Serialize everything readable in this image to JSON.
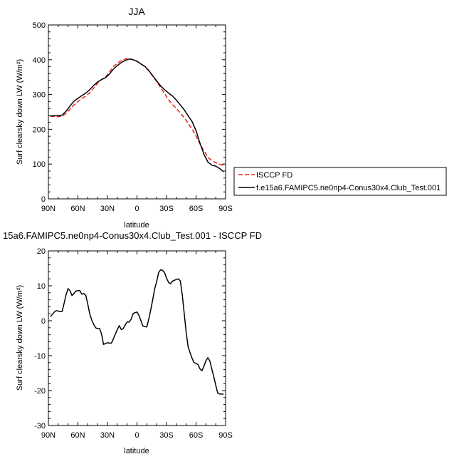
{
  "chart_data": [
    {
      "type": "line",
      "title": "JJA",
      "xlabel": "latitude",
      "ylabel": "Surf clearsky down LW (W/m²)",
      "xlim": [
        90,
        -90
      ],
      "ylim": [
        0,
        500
      ],
      "x_ticks": [
        "90N",
        "60N",
        "30N",
        "0",
        "30S",
        "60S",
        "90S"
      ],
      "y_ticks": [
        "0",
        "100",
        "200",
        "300",
        "400",
        "500"
      ],
      "grid": false,
      "legend_position": "right",
      "series": [
        {
          "name": "ISCCP FD",
          "color": "#e8201a",
          "dash": "dashed",
          "x": [
            88,
            84,
            80,
            76,
            72,
            68,
            64,
            60,
            56,
            52,
            48,
            44,
            40,
            36,
            32,
            28,
            24,
            20,
            16,
            12,
            8,
            4,
            0,
            -4,
            -8,
            -12,
            -16,
            -20,
            -24,
            -28,
            -32,
            -36,
            -40,
            -44,
            -48,
            -52,
            -56,
            -60,
            -64,
            -68,
            -72,
            -76,
            -80,
            -84,
            -88
          ],
          "values": [
            237,
            237,
            236,
            238,
            246,
            258,
            270,
            280,
            288,
            296,
            305,
            318,
            333,
            343,
            350,
            365,
            380,
            390,
            398,
            402,
            403,
            400,
            395,
            388,
            380,
            368,
            353,
            337,
            320,
            303,
            285,
            272,
            260,
            247,
            233,
            217,
            200,
            180,
            158,
            138,
            120,
            110,
            104,
            99,
            97
          ]
        },
        {
          "name": "f.e15a6.FAMIPC5.ne0np4-Conus30x4.Club_Test.001",
          "color": "#000000",
          "dash": "solid",
          "x": [
            88,
            84,
            80,
            76,
            72,
            68,
            64,
            60,
            56,
            52,
            48,
            44,
            40,
            36,
            32,
            28,
            24,
            20,
            16,
            12,
            8,
            4,
            0,
            -4,
            -8,
            -12,
            -16,
            -20,
            -24,
            -28,
            -32,
            -36,
            -40,
            -44,
            -48,
            -52,
            -56,
            -60,
            -64,
            -68,
            -72,
            -76,
            -80,
            -84,
            -88
          ],
          "values": [
            238,
            239,
            239,
            241,
            252,
            267,
            281,
            289,
            297,
            304,
            314,
            326,
            336,
            343,
            348,
            359,
            373,
            383,
            392,
            398,
            402,
            400,
            396,
            388,
            381,
            369,
            354,
            339,
            325,
            314,
            304,
            296,
            284,
            270,
            256,
            239,
            222,
            196,
            160,
            128,
            106,
            97,
            94,
            87,
            78
          ]
        }
      ]
    },
    {
      "type": "line",
      "title": "15a6.FAMIPC5.ne0np4-Conus30x4.Club_Test.001 - ISCCP FD",
      "xlabel": "latitude",
      "ylabel": "Surf clearsky down LW (W/m²)",
      "xlim": [
        90,
        -90
      ],
      "ylim": [
        -30,
        20
      ],
      "x_ticks": [
        "90N",
        "60N",
        "30N",
        "0",
        "30S",
        "60S",
        "90S"
      ],
      "y_ticks": [
        "-30",
        "-20",
        "-10",
        "0",
        "10",
        "20"
      ],
      "grid": false,
      "series": [
        {
          "color": "#000000",
          "x": [
            88,
            86,
            84,
            82,
            80,
            78,
            76,
            74,
            72,
            70,
            68,
            66,
            64,
            62,
            60,
            58,
            56,
            54,
            52,
            50,
            48,
            46,
            44,
            42,
            40,
            38,
            36,
            34,
            32,
            30,
            28,
            26,
            24,
            22,
            20,
            18,
            16,
            14,
            12,
            10,
            8,
            6,
            4,
            2,
            0,
            -2,
            -4,
            -6,
            -8,
            -10,
            -12,
            -14,
            -16,
            -18,
            -20,
            -22,
            -24,
            -26,
            -28,
            -30,
            -32,
            -34,
            -36,
            -38,
            -40,
            -42,
            -44,
            -46,
            -48,
            -50,
            -52,
            -54,
            -56,
            -58,
            -60,
            -62,
            -64,
            -66,
            -68,
            -70,
            -72,
            -74,
            -76,
            -78,
            -80,
            -82,
            -84,
            -86,
            -88
          ],
          "values": [
            1.2,
            1.8,
            2.5,
            2.9,
            2.8,
            2.6,
            2.7,
            5.0,
            7.5,
            9.2,
            8.6,
            7.2,
            7.8,
            8.5,
            8.6,
            8.6,
            7.6,
            7.8,
            7.2,
            4.8,
            2.0,
            0.2,
            -1.0,
            -2.0,
            -2.3,
            -2.2,
            -3.8,
            -6.8,
            -6.5,
            -6.3,
            -6.4,
            -6.4,
            -5.2,
            -3.8,
            -2.6,
            -1.4,
            -2.5,
            -2.3,
            -1.2,
            -0.3,
            -0.4,
            0.4,
            2.0,
            2.3,
            2.5,
            1.5,
            0.0,
            -1.5,
            -1.7,
            -1.8,
            0.5,
            3.2,
            6.0,
            9.2,
            11.2,
            13.8,
            14.6,
            14.4,
            13.8,
            12.2,
            11.0,
            10.6,
            11.3,
            11.6,
            11.8,
            12.0,
            11.4,
            7.5,
            2.0,
            -3.5,
            -7.5,
            -9.2,
            -10.8,
            -12.0,
            -12.2,
            -12.6,
            -13.8,
            -14.3,
            -13.0,
            -11.5,
            -10.6,
            -11.5,
            -13.8,
            -16.0,
            -18.5,
            -20.7,
            -21.0,
            -21.0,
            -21.0
          ]
        }
      ]
    }
  ]
}
